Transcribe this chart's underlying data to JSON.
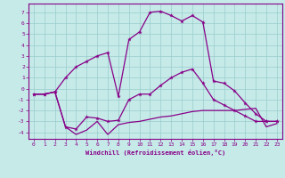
{
  "xlabel": "Windchill (Refroidissement éolien,°C)",
  "xlim": [
    -0.5,
    23.5
  ],
  "ylim": [
    -4.6,
    7.8
  ],
  "yticks": [
    -4,
    -3,
    -2,
    -1,
    0,
    1,
    2,
    3,
    4,
    5,
    6,
    7
  ],
  "xticks": [
    0,
    1,
    2,
    3,
    4,
    5,
    6,
    7,
    8,
    9,
    10,
    11,
    12,
    13,
    14,
    15,
    16,
    17,
    18,
    19,
    20,
    21,
    22,
    23
  ],
  "bg_color": "#c5eae8",
  "line_color": "#880088",
  "grid_color": "#99cccc",
  "line1_x": [
    0,
    1,
    2,
    3,
    4,
    5,
    6,
    7,
    8,
    9,
    10,
    11,
    12,
    13,
    14,
    15,
    16,
    17,
    18,
    19,
    20,
    21,
    22,
    23
  ],
  "line1_y": [
    -0.5,
    -0.5,
    -0.3,
    1.0,
    2.0,
    2.5,
    3.0,
    3.3,
    -0.7,
    4.5,
    5.2,
    7.0,
    7.1,
    6.7,
    6.2,
    6.7,
    6.1,
    0.7,
    0.5,
    -0.2,
    -1.3,
    -2.3,
    -3.0,
    -3.0
  ],
  "line2_x": [
    0,
    1,
    2,
    3,
    4,
    5,
    6,
    7,
    8,
    9,
    10,
    11,
    12,
    13,
    14,
    15,
    16,
    17,
    18,
    19,
    20,
    21,
    22,
    23
  ],
  "line2_y": [
    -0.5,
    -0.5,
    -0.3,
    -3.5,
    -3.7,
    -2.6,
    -2.7,
    -3.0,
    -2.9,
    -1.0,
    -0.5,
    -0.5,
    0.3,
    1.0,
    1.5,
    1.8,
    0.5,
    -1.0,
    -1.5,
    -2.0,
    -2.5,
    -3.0,
    -3.0,
    -3.0
  ],
  "line3_x": [
    0,
    1,
    2,
    3,
    4,
    5,
    6,
    7,
    8,
    9,
    10,
    11,
    12,
    13,
    14,
    15,
    16,
    17,
    18,
    19,
    20,
    21,
    22,
    23
  ],
  "line3_y": [
    -0.5,
    -0.5,
    -0.3,
    -3.5,
    -4.2,
    -3.8,
    -3.0,
    -4.2,
    -3.3,
    -3.1,
    -3.0,
    -2.8,
    -2.6,
    -2.5,
    -2.3,
    -2.1,
    -2.0,
    -2.0,
    -2.0,
    -2.0,
    -1.9,
    -1.8,
    -3.5,
    -3.2
  ]
}
